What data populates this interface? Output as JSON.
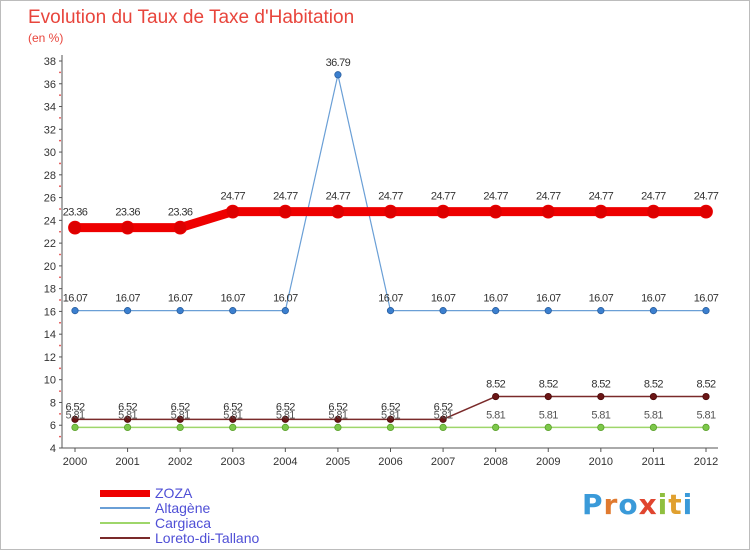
{
  "chart_data": {
    "type": "line",
    "title": "Evolution du Taux de Taxe d'Habitation",
    "subtitle": "(en %)",
    "categories": [
      "2000",
      "2001",
      "2002",
      "2003",
      "2004",
      "2005",
      "2006",
      "2007",
      "2008",
      "2009",
      "2010",
      "2011",
      "2012"
    ],
    "ylim": [
      4,
      38
    ],
    "yticks": [
      4,
      6,
      8,
      10,
      12,
      14,
      16,
      18,
      20,
      22,
      24,
      26,
      28,
      30,
      32,
      34,
      36,
      38
    ],
    "grid": false,
    "legend_position": "bottom-left",
    "series": [
      {
        "name": "ZOZA",
        "color": "#ee0000",
        "values": [
          23.36,
          23.36,
          23.36,
          24.77,
          24.77,
          24.77,
          24.77,
          24.77,
          24.77,
          24.77,
          24.77,
          24.77,
          24.77
        ],
        "labels": [
          "23.36",
          "23.36",
          "23.36",
          "24.77",
          "24.77",
          "24.77",
          "24.77",
          "24.77",
          "24.77",
          "24.77",
          "24.77",
          "24.77",
          "24.77"
        ]
      },
      {
        "name": "Altagène",
        "color": "#6a9fd6",
        "values": [
          16.07,
          16.07,
          16.07,
          16.07,
          16.07,
          36.79,
          16.07,
          16.07,
          16.07,
          16.07,
          16.07,
          16.07,
          16.07
        ],
        "labels": [
          "16.07",
          "16.07",
          "16.07",
          "16.07",
          "16.07",
          "36.79",
          "16.07",
          "16.07",
          "16.07",
          "16.07",
          "16.07",
          "16.07",
          "16.07"
        ]
      },
      {
        "name": "Cargiaca",
        "color": "#9ed66a",
        "values": [
          5.81,
          5.81,
          5.81,
          5.81,
          5.81,
          5.81,
          5.81,
          5.81,
          5.81,
          5.81,
          5.81,
          5.81,
          5.81
        ],
        "labels": [
          "5.81",
          "5.81",
          "5.81",
          "5.81",
          "5.81",
          "5.81",
          "5.81",
          "5.81",
          "5.81",
          "5.81",
          "5.81",
          "5.81",
          "5.81"
        ]
      },
      {
        "name": "Loreto-di-Tallano",
        "color": "#7a2a2a",
        "values": [
          6.52,
          6.52,
          6.52,
          6.52,
          6.52,
          6.52,
          6.52,
          6.52,
          8.52,
          8.52,
          8.52,
          8.52,
          8.52
        ],
        "labels": [
          "6.52",
          "6.52",
          "6.52",
          "6.52",
          "6.52",
          "6.52",
          "6.52",
          "6.52",
          "8.52",
          "8.52",
          "8.52",
          "8.52",
          "8.52"
        ]
      }
    ]
  },
  "logo": {
    "text": "Proxiti",
    "letters": [
      "P",
      "r",
      "o",
      "x",
      "i",
      "t",
      "i"
    ],
    "colors": [
      "#3a9ad9",
      "#e07a2f",
      "#3a9ad9",
      "#e0452f",
      "#8fbf3f",
      "#e0a02f",
      "#3a9ad9"
    ]
  }
}
